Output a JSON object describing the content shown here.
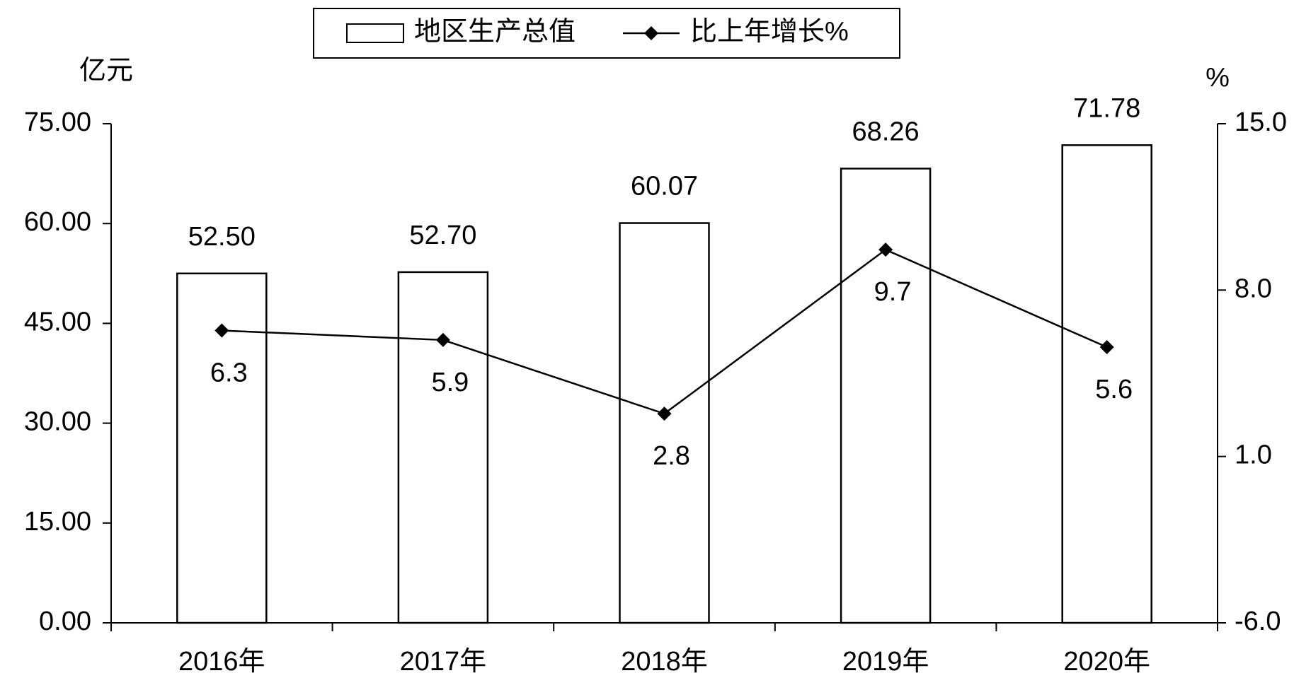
{
  "chart_data": {
    "type": "bar-line",
    "categories": [
      "2016年",
      "2017年",
      "2018年",
      "2019年",
      "2020年"
    ],
    "series": [
      {
        "name": "地区生产总值",
        "type": "bar",
        "color": "#ffffff",
        "values": [
          52.5,
          52.7,
          60.07,
          68.26,
          71.78
        ],
        "value_labels": [
          "52.50",
          "52.70",
          "60.07",
          "68.26",
          "71.78"
        ]
      },
      {
        "name": "比上年增长%",
        "type": "line",
        "axis": "y2",
        "color": "#000000",
        "values": [
          6.3,
          5.9,
          2.8,
          9.7,
          5.6
        ]
      }
    ],
    "ylabel": "亿元",
    "y2label": "%",
    "ylim": [
      0,
      75
    ],
    "yticks": [
      {
        "value": 0,
        "label": "0.00"
      },
      {
        "value": 15,
        "label": "15.00"
      },
      {
        "value": 30,
        "label": "30.00"
      },
      {
        "value": 45,
        "label": "45.00"
      },
      {
        "value": 60,
        "label": "60.00"
      },
      {
        "value": 75,
        "label": "75.00"
      }
    ],
    "y2lim": [
      -6,
      15
    ],
    "y2ticks": [
      {
        "value": -6,
        "label": "-6.0"
      },
      {
        "value": 1,
        "label": "1.0"
      },
      {
        "value": 8,
        "label": "8.0"
      },
      {
        "value": 15,
        "label": "15.0"
      }
    ],
    "grid": false,
    "legend": "top"
  }
}
